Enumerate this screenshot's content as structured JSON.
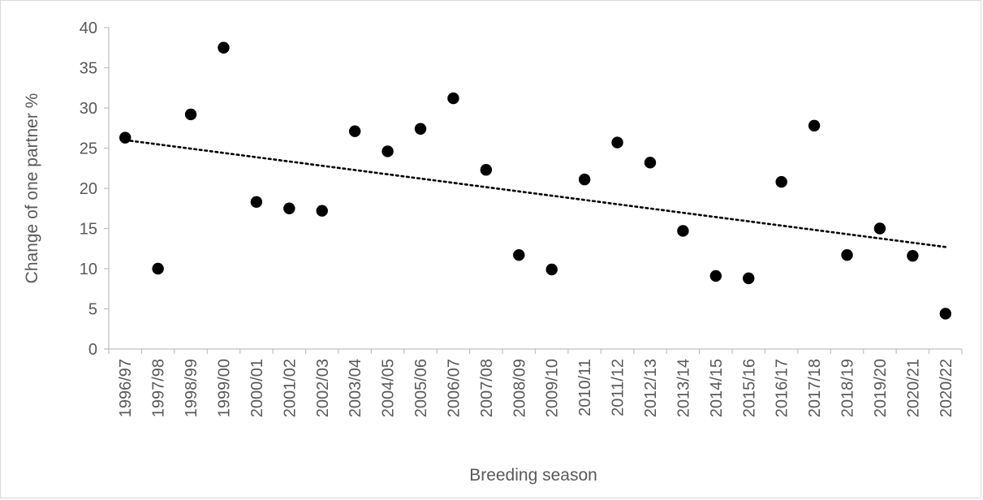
{
  "chart_data": {
    "type": "scatter",
    "title": "",
    "xlabel": "Breeding season",
    "ylabel": "Change of one partner %",
    "categories": [
      "1996/97",
      "1997/98",
      "1998/99",
      "1999/00",
      "2000/01",
      "2001/02",
      "2002/03",
      "2003/04",
      "2004/05",
      "2005/06",
      "2006/07",
      "2007/08",
      "2008/09",
      "2009/10",
      "2010/11",
      "2011/12",
      "2012/13",
      "2013/14",
      "2014/15",
      "2015/16",
      "2016/17",
      "2017/18",
      "2018/19",
      "2019/20",
      "2020/21",
      "2020/22"
    ],
    "values": [
      26.3,
      10.0,
      29.2,
      37.5,
      18.3,
      17.5,
      17.2,
      27.1,
      24.6,
      27.4,
      31.2,
      22.3,
      11.7,
      9.9,
      21.1,
      25.7,
      23.2,
      14.7,
      9.1,
      8.8,
      20.8,
      27.8,
      11.7,
      15.0,
      11.6,
      4.4
    ],
    "trendline": {
      "type": "linear",
      "style": "dotted",
      "start": 26.0,
      "end": 12.7
    },
    "ylim": [
      0,
      40
    ],
    "yticks": [
      0,
      5,
      10,
      15,
      20,
      25,
      30,
      35,
      40
    ],
    "grid": false,
    "legend": "none",
    "colors": {
      "marker": "#000000",
      "axis": "#bfbfbf",
      "text": "#595959"
    }
  }
}
